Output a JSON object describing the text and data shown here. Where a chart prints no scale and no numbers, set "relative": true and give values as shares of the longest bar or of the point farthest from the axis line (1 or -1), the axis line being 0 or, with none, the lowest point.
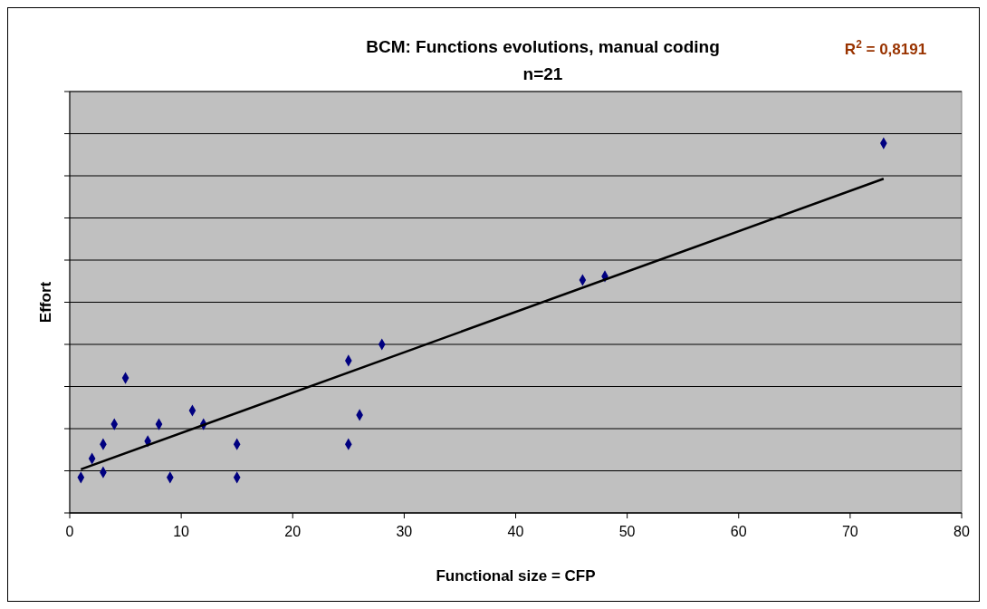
{
  "chart_data": {
    "type": "scatter",
    "title": "BCM: Functions evolutions, manual coding",
    "subtitle": "n=21",
    "xlabel": "Functional size = CFP",
    "ylabel": "Effort",
    "relative": true,
    "xlim": [
      0,
      80
    ],
    "xticks": [
      0,
      10,
      20,
      30,
      40,
      50,
      60,
      70,
      80
    ],
    "grid": "y",
    "annotations": [
      "R$^{2}$ = 0,8191"
    ],
    "series": [
      {
        "marker": "diamond",
        "color": "#000080",
        "x": [
          1,
          2,
          3,
          3,
          4,
          5,
          7,
          8,
          9,
          11,
          12,
          15,
          15,
          25,
          25,
          26,
          28,
          46,
          48,
          73
        ],
        "values": [
          0.096,
          0.147,
          0.186,
          0.11,
          0.24,
          0.365,
          0.194,
          0.24,
          0.096,
          0.277,
          0.24,
          0.186,
          0.096,
          0.412,
          0.186,
          0.265,
          0.456,
          0.63,
          0.64,
          1
        ]
      },
      {
        "type": "line",
        "marker": "none",
        "color": "#000000",
        "x": [
          1,
          73
        ],
        "values": [
          0.118,
          0.904
        ]
      }
    ]
  }
}
